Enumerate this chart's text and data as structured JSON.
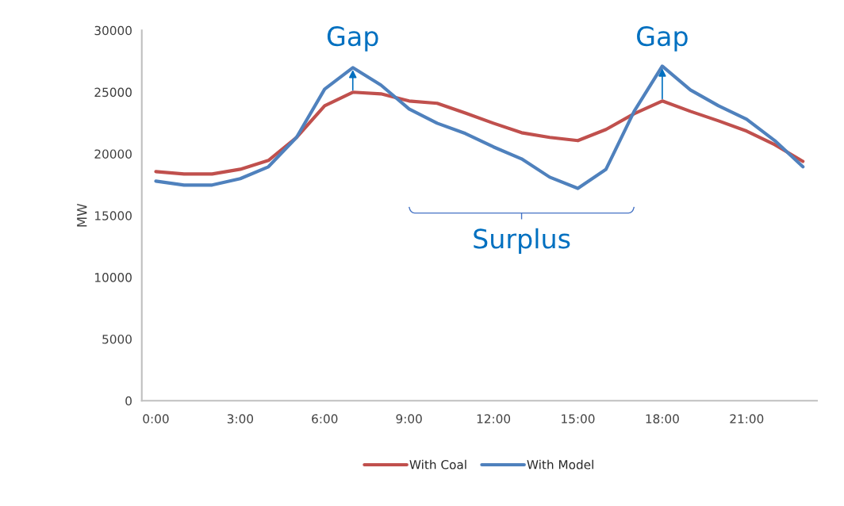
{
  "chart_data": {
    "type": "line",
    "ylabel": "MW",
    "categories": [
      "0:00",
      null,
      null,
      "3:00",
      null,
      null,
      "6:00",
      null,
      null,
      "9:00",
      null,
      null,
      "12:00",
      null,
      null,
      "15:00",
      null,
      null,
      "18:00",
      null,
      null,
      "21:00",
      null,
      null
    ],
    "series": [
      {
        "name": "With Coal",
        "color": "#c0504d",
        "values": [
          18560,
          18370,
          18370,
          18750,
          19460,
          21330,
          23890,
          24990,
          24860,
          24280,
          24090,
          23300,
          22480,
          21710,
          21330,
          21070,
          21970,
          23250,
          24280,
          23440,
          22670,
          21840,
          20740,
          19390
        ]
      },
      {
        "name": "With Model",
        "color": "#4f81bd",
        "values": [
          17790,
          17470,
          17470,
          17990,
          18950,
          21330,
          25240,
          26980,
          25570,
          23640,
          22480,
          21650,
          20560,
          19590,
          18110,
          17200,
          18750,
          23440,
          27100,
          25180,
          23890,
          22800,
          21070,
          18950
        ]
      }
    ],
    "ylim": [
      0,
      30000
    ],
    "yticks": [
      0,
      5000,
      10000,
      15000,
      20000,
      25000,
      30000
    ],
    "grid": false,
    "legend": "bottom",
    "marker": "none",
    "line_style": "solid",
    "annotations": [
      "Gap",
      "Gap",
      "Surplus"
    ]
  }
}
